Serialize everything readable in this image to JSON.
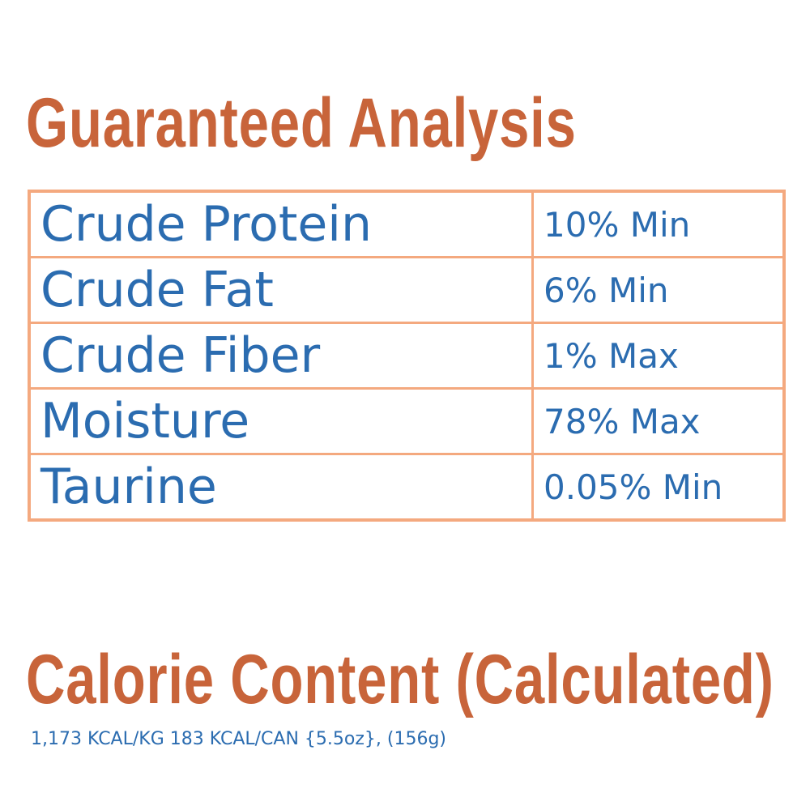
{
  "header": {
    "title": "Guaranteed Analysis"
  },
  "table": {
    "rows": [
      [
        "Crude Protein",
        "10% Min"
      ],
      [
        "Crude Fat",
        "6% Min"
      ],
      [
        "Crude Fiber",
        "1% Max"
      ],
      [
        "Moisture",
        "78% Max"
      ],
      [
        "Taurine",
        "0.05% Min"
      ]
    ]
  },
  "calories": {
    "title": "Calorie Content (Calculated)",
    "text": "1,173 KCAL/KG 183 KCAL/CAN {5.5oz}, (156g)"
  }
}
